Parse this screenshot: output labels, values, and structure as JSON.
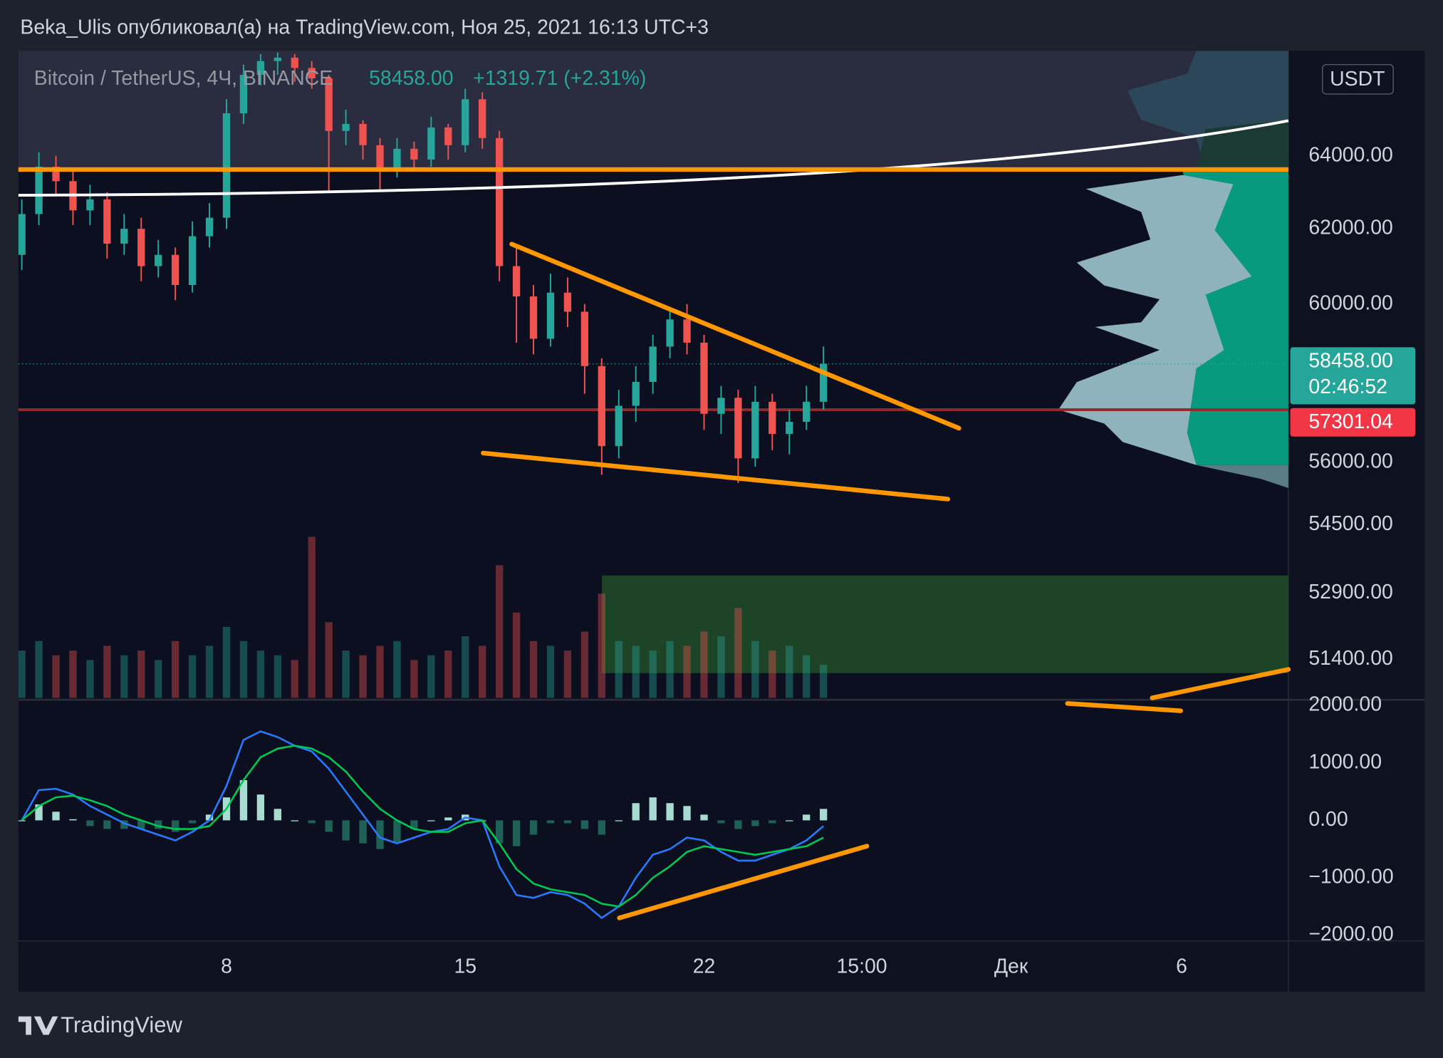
{
  "chart_data": {
    "type": "candlestick",
    "title": "Beka_Ulis опубликовал(а) на TradingView.com, Ноя 25, 2021 16:13 UTC+3",
    "symbol": "Bitcoin / TetherUS, 4Ч, BINANCE",
    "change": "+1319.71 (+2.31%)",
    "currency": "USDT",
    "countdown": "02:46:52",
    "brand": "TradingView",
    "last_price": {
      "value": 58458,
      "label": "58458.00"
    },
    "alert_price": {
      "value": 57301.04,
      "label": "57301.04"
    },
    "log_scale": true,
    "grid": false,
    "up_color": "#26a69a",
    "down_color": "#ef5350",
    "x": [
      2,
      2.5,
      3,
      3.5,
      4,
      4.5,
      5,
      5.5,
      6,
      6.5,
      7,
      7.5,
      8,
      8.5,
      9,
      9.5,
      10,
      10.5,
      11,
      11.5,
      12,
      12.5,
      13,
      13.5,
      14,
      14.5,
      15,
      15.5,
      16,
      16.5,
      17,
      17.5,
      18,
      18.5,
      19,
      19.5,
      20,
      20.5,
      21,
      21.5,
      22,
      22.5,
      23,
      23.5,
      24,
      24.5,
      25,
      25.5
    ],
    "xlim": [
      1.9,
      39.13
    ],
    "xticks": [
      8,
      15,
      22,
      {
        "value": 26.625,
        "label": "15:00"
      },
      {
        "value": 31,
        "label": "Дек"
      },
      {
        "value": 36,
        "label": "6"
      }
    ],
    "ylim": [
      50500,
      67000
    ],
    "yticks": [
      {
        "value": 64000,
        "label": "64000.00"
      },
      {
        "value": 62000,
        "label": "62000.00"
      },
      {
        "value": 60000,
        "label": "60000.00"
      },
      {
        "value": 56000,
        "label": "56000.00"
      },
      {
        "value": 54500,
        "label": "54500.00"
      },
      {
        "value": 52900,
        "label": "52900.00"
      },
      {
        "value": 51400,
        "label": "51400.00"
      }
    ],
    "open": [
      61300,
      62400,
      63700,
      63300,
      62500,
      62800,
      61600,
      62000,
      61000,
      61300,
      60500,
      61800,
      62300,
      65200,
      66300,
      66700,
      66800,
      66500,
      66200,
      64700,
      64900,
      64300,
      63600,
      64200,
      63900,
      64800,
      64300,
      65600,
      64500,
      61000,
      60200,
      59100,
      60300,
      59800,
      58400,
      56400,
      57400,
      58000,
      58900,
      59600,
      59000,
      57200,
      57600,
      56100,
      57500,
      56700,
      57000,
      57500
    ],
    "high": [
      62800,
      64100,
      64000,
      63600,
      63200,
      63000,
      62400,
      62300,
      61700,
      61500,
      62200,
      62700,
      65600,
      66600,
      66900,
      66950,
      66900,
      66700,
      66300,
      65300,
      65000,
      64500,
      64500,
      64400,
      65100,
      64900,
      65900,
      65800,
      64700,
      61500,
      60500,
      60800,
      60700,
      60000,
      58600,
      57800,
      58400,
      59200,
      59900,
      60000,
      59200,
      57900,
      57800,
      57900,
      57700,
      57300,
      57900,
      58900
    ],
    "low": [
      60900,
      62100,
      62900,
      62100,
      62100,
      61200,
      61300,
      60600,
      60700,
      60100,
      60300,
      61500,
      62000,
      64900,
      66000,
      66300,
      66100,
      65900,
      63000,
      64300,
      63900,
      63000,
      63400,
      63600,
      63700,
      63900,
      64100,
      64200,
      60600,
      59000,
      58700,
      58900,
      59400,
      57700,
      55700,
      56100,
      57000,
      57700,
      58600,
      58700,
      56800,
      56700,
      55500,
      55900,
      56300,
      56200,
      56800,
      57300
    ],
    "close": [
      62400,
      63700,
      63300,
      62500,
      62800,
      61600,
      62000,
      61000,
      61300,
      60500,
      61800,
      62300,
      65200,
      66300,
      66700,
      66800,
      66500,
      66200,
      64700,
      64900,
      64300,
      63600,
      64200,
      63900,
      64800,
      64300,
      65600,
      64500,
      61000,
      60200,
      59100,
      60300,
      59800,
      58400,
      56400,
      57400,
      58000,
      58900,
      59600,
      59000,
      57200,
      57600,
      56100,
      57500,
      56700,
      57000,
      57500,
      58458
    ],
    "volume": [
      5000,
      6000,
      4500,
      5000,
      4000,
      5500,
      4500,
      5000,
      4000,
      6000,
      4500,
      5500,
      7500,
      6000,
      5000,
      4500,
      4000,
      17000,
      8000,
      5000,
      4500,
      5500,
      6000,
      4000,
      4500,
      5000,
      6500,
      5500,
      14000,
      9000,
      6000,
      5500,
      5000,
      7000,
      11000,
      6000,
      5500,
      5000,
      6000,
      5500,
      7000,
      6500,
      9500,
      6000,
      5000,
      5500,
      4500,
      3500
    ],
    "y2lim": [
      -2100,
      2100
    ],
    "y2ticks": [
      {
        "value": 2000,
        "label": "2000.00"
      },
      {
        "value": 1000,
        "label": "1000.00"
      },
      {
        "value": 0,
        "label": "0.00"
      },
      {
        "value": -1000,
        "label": "−1000.00"
      },
      {
        "value": -2000,
        "label": "−2000.00"
      }
    ],
    "series": [
      {
        "color": "#2979ff",
        "axis": "y2",
        "values": [
          0,
          528,
          550,
          450,
          250,
          100,
          -50,
          -150,
          -250,
          -350,
          -200,
          0,
          600,
          1400,
          1550,
          1450,
          1300,
          1200,
          900,
          500,
          100,
          -300,
          -400,
          -300,
          -200,
          -150,
          50,
          0,
          -800,
          -1300,
          -1350,
          -1250,
          -1300,
          -1450,
          -1700,
          -1500,
          -1000,
          -600,
          -500,
          -300,
          -350,
          -550,
          -700,
          -700,
          -600,
          -500,
          -350,
          -100
        ]
      },
      {
        "color": "#00c853",
        "axis": "y2",
        "values": [
          0,
          250,
          400,
          430,
          350,
          250,
          100,
          0,
          -100,
          -150,
          -150,
          -100,
          200,
          700,
          1100,
          1250,
          1300,
          1250,
          1100,
          850,
          500,
          200,
          0,
          -150,
          -200,
          -200,
          -50,
          0,
          -400,
          -850,
          -1100,
          -1200,
          -1250,
          -1300,
          -1450,
          -1500,
          -1300,
          -1000,
          -800,
          -550,
          -450,
          -500,
          -550,
          -600,
          -550,
          -500,
          -450,
          -300
        ]
      }
    ],
    "histogram": {
      "axis": "y2",
      "pos_color": "#a8dcd3",
      "neg_color": "#1f6157",
      "values": [
        0,
        278,
        150,
        20,
        -100,
        -150,
        -150,
        -150,
        -150,
        -200,
        -50,
        100,
        400,
        700,
        450,
        200,
        0,
        -50,
        -200,
        -350,
        -400,
        -500,
        -400,
        -150,
        0,
        50,
        100,
        0,
        -400,
        -450,
        -250,
        -50,
        -50,
        -150,
        -250,
        0,
        300,
        400,
        300,
        250,
        100,
        -50,
        -150,
        -100,
        -50,
        0,
        100,
        200
      ]
    }
  }
}
